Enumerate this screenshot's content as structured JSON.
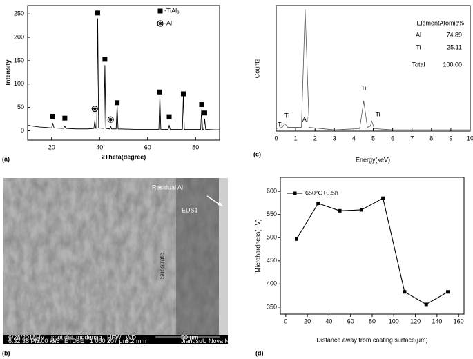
{
  "chart_data": [
    {
      "type": "line",
      "panel_label": "(a)",
      "x_label": "2Theta(degree)",
      "y_label": "Intensity",
      "color": "#000000",
      "x": [
        10,
        12,
        15,
        18,
        20,
        20.5,
        21,
        25,
        25.5,
        26,
        30,
        35,
        37.6,
        38,
        38.4,
        38.8,
        39.2,
        39.6,
        41.8,
        42.2,
        42.6,
        44.2,
        44.6,
        45,
        46.9,
        47.3,
        47.7,
        55,
        60,
        64.7,
        65.1,
        65.5,
        68.6,
        69,
        69.4,
        74.5,
        74.9,
        75.3,
        78,
        82.1,
        82.5,
        82.9,
        83.4,
        83.8,
        84.2,
        88,
        90
      ],
      "values": [
        12,
        10,
        8,
        7,
        6,
        16,
        6,
        5,
        10,
        5,
        4,
        4,
        5,
        22,
        5,
        6,
        240,
        6,
        5,
        140,
        5,
        4,
        10,
        4,
        4,
        55,
        4,
        3,
        3,
        3,
        75,
        3,
        3,
        12,
        3,
        3,
        75,
        3,
        3,
        3,
        45,
        3,
        3,
        25,
        3,
        2,
        2
      ],
      "markers": [
        {
          "name": "-TiAl₃",
          "symbol": "square",
          "x": [
            20.5,
            25.5,
            39.2,
            42.2,
            47.3,
            65.1,
            69,
            74.9,
            82.5,
            83.8
          ],
          "values": [
            31,
            27,
            252,
            153,
            60,
            83,
            30,
            79,
            56,
            38
          ]
        },
        {
          "name": "-Al",
          "symbol": "circle-star",
          "x": [
            38,
            44.6
          ],
          "values": [
            47,
            24
          ]
        }
      ],
      "xlim": [
        10,
        90
      ],
      "xticks": [
        20,
        40,
        60,
        80
      ],
      "ylim": [
        -20,
        268
      ],
      "yticks": [
        0,
        50,
        100,
        150,
        200,
        250
      ]
    },
    {
      "type": "line",
      "panel_label": "(c)",
      "x_label": "Energy(keV)",
      "y_label": "Counts",
      "color": "#555555",
      "x": [
        0,
        0.3,
        0.45,
        0.6,
        1.3,
        1.49,
        1.7,
        3,
        4.3,
        4.51,
        4.7,
        4.85,
        4.93,
        5.05,
        6,
        8,
        10
      ],
      "values": [
        2,
        3,
        6,
        3,
        3,
        97,
        3,
        1,
        2,
        24,
        3,
        4,
        8,
        2,
        1,
        1,
        1
      ],
      "annotations": [
        "Al",
        "Ti",
        "Ti",
        "Ti",
        "Ti"
      ],
      "table": {
        "header": [
          "Element",
          "Atomic%"
        ],
        "rows": [
          [
            "Al",
            "74.89"
          ],
          [
            "Ti",
            "25.11"
          ],
          [
            "Total",
            "100.00"
          ]
        ]
      },
      "xlim": [
        0,
        10
      ],
      "xticks": [
        0,
        1,
        2,
        3,
        4,
        5,
        6,
        7,
        8,
        9,
        10
      ],
      "ylim": [
        0,
        100
      ]
    },
    {
      "type": "line",
      "panel_label": "(d)",
      "x_label": "Distance away from coating surface(μm)",
      "y_label": "Microhardness(HV)",
      "x": [
        10,
        30,
        50,
        70,
        90,
        110,
        130,
        150
      ],
      "series": [
        {
          "name": "650°C+0.5h",
          "color": "#000000",
          "values": [
            497,
            574,
            558,
            560,
            585,
            383,
            356,
            383
          ]
        }
      ],
      "legend": "upper left",
      "xlim": [
        -5,
        165
      ],
      "xticks": [
        0,
        20,
        40,
        60,
        80,
        100,
        120,
        140,
        160
      ],
      "ylim": [
        335,
        630
      ],
      "yticks": [
        350,
        400,
        450,
        500,
        550,
        600
      ]
    }
  ],
  "sem_image": {
    "panel_label": "(b)",
    "labels": [
      "Residual Al",
      "EDS1",
      "Substrate"
    ],
    "info_bar": [
      "6/28/2018",
      "6:32:38 PM",
      "HV",
      "5.00 kV",
      "spot",
      "3.5",
      "det",
      "ETD",
      "mode",
      "SE",
      "mag",
      "1 000 x",
      "HFW",
      "207 μm",
      "WD",
      "6.2 mm",
      "50 μm",
      "JiangsuU Nova NanoSEM"
    ]
  }
}
